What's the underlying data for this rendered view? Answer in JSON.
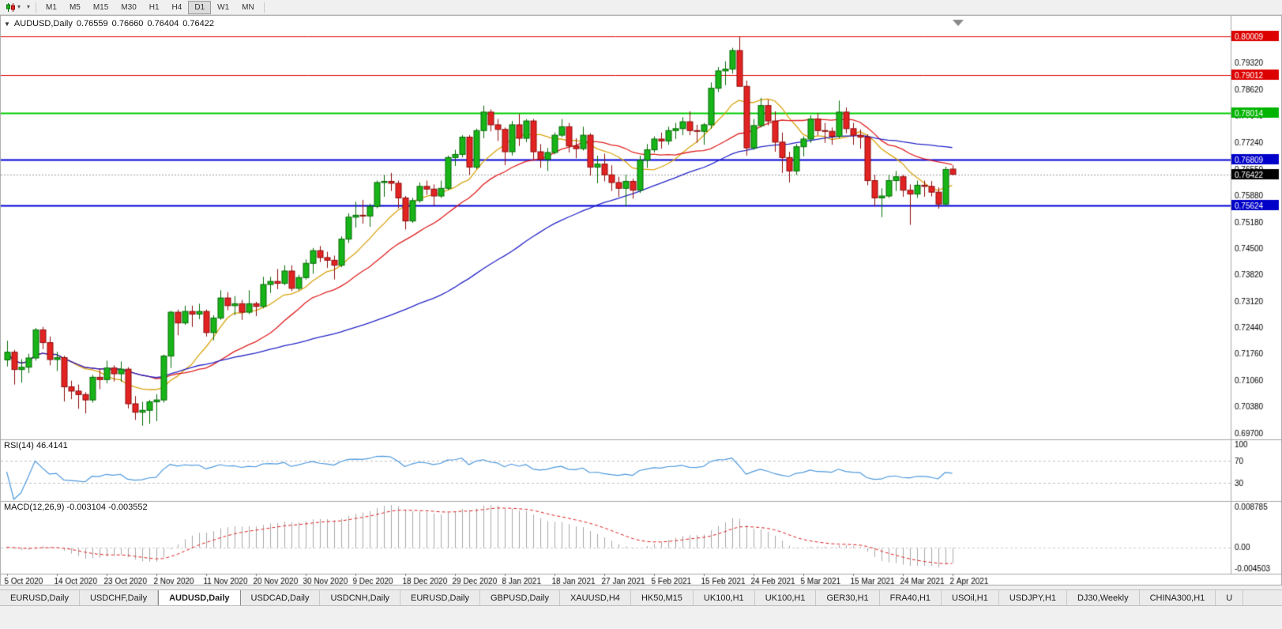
{
  "toolbar": {
    "caret": "▾",
    "timeframes": [
      "M1",
      "M5",
      "M15",
      "M30",
      "H1",
      "H4",
      "D1",
      "W1",
      "MN"
    ],
    "active_timeframe": "D1"
  },
  "chart": {
    "header": {
      "caret": "▼",
      "symbol": "AUDUSD,Daily",
      "open": "0.76559",
      "high": "0.76660",
      "low": "0.76404",
      "close": "0.76422"
    }
  },
  "rsi": {
    "label": "RSI(14) 46.4141",
    "axis_labels": [
      "100",
      "70",
      "30"
    ],
    "axis_values": [
      100,
      70,
      30
    ]
  },
  "macd": {
    "label": "MACD(12,26,9) -0.003104 -0.003552",
    "axis_labels": [
      "0.008785",
      "0.00",
      "-0.004503"
    ]
  },
  "tabs": {
    "items": [
      "EURUSD,Daily",
      "USDCHF,Daily",
      "AUDUSD,Daily",
      "USDCAD,Daily",
      "USDCNH,Daily",
      "EURUSD,Daily",
      "GBPUSD,Daily",
      "XAUUSD,H4",
      "HK50,M15",
      "UK100,H1",
      "UK100,H1",
      "GER30,H1",
      "FRA40,H1",
      "USOil,H1",
      "USDJPY,H1",
      "DJ30,Weekly",
      "CHINA300,H1",
      "U"
    ],
    "active_index": 2
  },
  "chart_data": {
    "type": "candlestick",
    "symbol": "AUDUSD",
    "timeframe": "Daily",
    "title": "AUDUSD,Daily 0.76559 0.76660 0.76404 0.76422",
    "y_axis_ticks": [
      0.7932,
      0.7862,
      0.7794,
      0.7724,
      0.7655,
      0.7588,
      0.7518,
      0.745,
      0.7382,
      0.7312,
      0.7244,
      0.7176,
      0.7106,
      0.7038,
      0.697
    ],
    "x_axis_labels": [
      "5 Oct 2020",
      "14 Oct 2020",
      "23 Oct 2020",
      "2 Nov 2020",
      "11 Nov 2020",
      "20 Nov 2020",
      "30 Nov 2020",
      "9 Dec 2020",
      "18 Dec 2020",
      "29 Dec 2020",
      "8 Jan 2021",
      "18 Jan 2021",
      "27 Jan 2021",
      "5 Feb 2021",
      "15 Feb 2021",
      "24 Feb 2021",
      "5 Mar 2021",
      "15 Mar 2021",
      "24 Mar 2021",
      "2 Apr 2021"
    ],
    "x_label_step": 7,
    "horizontal_lines": [
      {
        "price": 0.80009,
        "label": "0.80009",
        "color": "#e00000",
        "badge": "#dd0000",
        "width": 1
      },
      {
        "price": 0.79012,
        "label": "0.79012",
        "color": "#e00000",
        "badge": "#dd0000",
        "width": 1
      },
      {
        "price": 0.78014,
        "label": "0.78014",
        "color": "#00cd00",
        "badge": "#00b400",
        "width": 2
      },
      {
        "price": 0.76809,
        "label": "0.76809",
        "color": "#0000d8",
        "badge": "#0000c8",
        "width": 2
      },
      {
        "price": 0.75624,
        "label": "0.75624",
        "color": "#0000d8",
        "badge": "#0000c8",
        "width": 2
      }
    ],
    "current_price": {
      "price": 0.76422,
      "label": "0.76422",
      "badge": "#000000"
    },
    "colors": {
      "candle_up": "#17b517",
      "candle_up_border": "#056b05",
      "candle_down": "#e32222",
      "candle_down_border": "#8f0d0d",
      "ma_fast": "#d9a40e",
      "ma_mid": "#e02020",
      "ma_slow": "#2525c8",
      "rsi_line": "#4f9ade",
      "rsi_level": "#c0c0c0",
      "macd_histogram": "#a8a8a8",
      "macd_signal": "#e02020",
      "bid_line": "#9a9a9a",
      "axis_text": "#000000",
      "panel_border": "#a8a8a8"
    },
    "moving_averages": [
      {
        "period": 10,
        "color_key": "ma_fast"
      },
      {
        "period": 21,
        "color_key": "ma_mid"
      },
      {
        "period": 55,
        "color_key": "ma_slow"
      }
    ],
    "rsi_settings": {
      "period": 14,
      "current": 46.4141,
      "levels": [
        70,
        30
      ],
      "range": [
        0,
        100
      ]
    },
    "macd_settings": {
      "fast": 12,
      "slow": 26,
      "signal": 9,
      "current": -0.003104,
      "current_signal": -0.003552,
      "axis_ticks": [
        0.008785,
        0,
        -0.004503
      ]
    },
    "ohlc": [
      [
        0.716,
        0.721,
        0.7143,
        0.718
      ],
      [
        0.718,
        0.7186,
        0.7096,
        0.7135
      ],
      [
        0.7135,
        0.7162,
        0.7101,
        0.7141
      ],
      [
        0.7141,
        0.7176,
        0.7126,
        0.7165
      ],
      [
        0.7165,
        0.7243,
        0.7158,
        0.7238
      ],
      [
        0.7238,
        0.7246,
        0.7188,
        0.7205
      ],
      [
        0.7205,
        0.7221,
        0.7146,
        0.7161
      ],
      [
        0.7161,
        0.7181,
        0.7131,
        0.7166
      ],
      [
        0.7166,
        0.7171,
        0.7052,
        0.709
      ],
      [
        0.709,
        0.7106,
        0.7058,
        0.7079
      ],
      [
        0.7079,
        0.7096,
        0.7033,
        0.707
      ],
      [
        0.707,
        0.7076,
        0.7021,
        0.7056
      ],
      [
        0.7056,
        0.7121,
        0.7049,
        0.7115
      ],
      [
        0.7115,
        0.7136,
        0.7084,
        0.7109
      ],
      [
        0.7109,
        0.7158,
        0.7099,
        0.7139
      ],
      [
        0.7139,
        0.7146,
        0.7104,
        0.7124
      ],
      [
        0.7124,
        0.7156,
        0.7103,
        0.7136
      ],
      [
        0.7136,
        0.7141,
        0.7034,
        0.7046
      ],
      [
        0.7046,
        0.7066,
        0.7004,
        0.7024
      ],
      [
        0.7024,
        0.7051,
        0.6989,
        0.7029
      ],
      [
        0.7029,
        0.7056,
        0.6994,
        0.7051
      ],
      [
        0.7051,
        0.7071,
        0.7001,
        0.7056
      ],
      [
        0.7056,
        0.7174,
        0.7049,
        0.717
      ],
      [
        0.717,
        0.7288,
        0.7139,
        0.7284
      ],
      [
        0.7284,
        0.7291,
        0.7224,
        0.7256
      ],
      [
        0.7256,
        0.7301,
        0.7251,
        0.7286
      ],
      [
        0.7286,
        0.7301,
        0.7246,
        0.7279
      ],
      [
        0.7279,
        0.7306,
        0.7266,
        0.7286
      ],
      [
        0.7286,
        0.7291,
        0.7221,
        0.7231
      ],
      [
        0.7231,
        0.7276,
        0.7211,
        0.7269
      ],
      [
        0.7269,
        0.7341,
        0.7264,
        0.7321
      ],
      [
        0.7321,
        0.7336,
        0.7289,
        0.7301
      ],
      [
        0.7301,
        0.7326,
        0.7276,
        0.7306
      ],
      [
        0.7306,
        0.7316,
        0.7264,
        0.7284
      ],
      [
        0.7284,
        0.7341,
        0.7279,
        0.7306
      ],
      [
        0.7306,
        0.7311,
        0.7274,
        0.7299
      ],
      [
        0.7299,
        0.7376,
        0.7294,
        0.7356
      ],
      [
        0.7356,
        0.7376,
        0.7334,
        0.7364
      ],
      [
        0.7364,
        0.7396,
        0.7344,
        0.7359
      ],
      [
        0.7359,
        0.7406,
        0.7354,
        0.7391
      ],
      [
        0.7391,
        0.7406,
        0.7339,
        0.7346
      ],
      [
        0.7346,
        0.7381,
        0.7341,
        0.7374
      ],
      [
        0.7374,
        0.7421,
        0.7369,
        0.7411
      ],
      [
        0.7411,
        0.7451,
        0.7384,
        0.7444
      ],
      [
        0.7444,
        0.7456,
        0.7414,
        0.7426
      ],
      [
        0.7426,
        0.7441,
        0.7399,
        0.7419
      ],
      [
        0.7419,
        0.7431,
        0.7369,
        0.7406
      ],
      [
        0.7406,
        0.7481,
        0.7401,
        0.7474
      ],
      [
        0.7474,
        0.7541,
        0.7464,
        0.7531
      ],
      [
        0.7531,
        0.7571,
        0.7504,
        0.7536
      ],
      [
        0.7536,
        0.7576,
        0.7514,
        0.7534
      ],
      [
        0.7534,
        0.7566,
        0.7506,
        0.7559
      ],
      [
        0.7559,
        0.7626,
        0.7554,
        0.7621
      ],
      [
        0.7621,
        0.7641,
        0.7584,
        0.7624
      ],
      [
        0.7624,
        0.7646,
        0.7599,
        0.7619
      ],
      [
        0.7619,
        0.7626,
        0.7554,
        0.7581
      ],
      [
        0.7581,
        0.7586,
        0.7499,
        0.7521
      ],
      [
        0.7521,
        0.7581,
        0.7516,
        0.7574
      ],
      [
        0.7574,
        0.7621,
        0.7569,
        0.7611
      ],
      [
        0.7611,
        0.7626,
        0.7589,
        0.7604
      ],
      [
        0.7604,
        0.7616,
        0.7561,
        0.7586
      ],
      [
        0.7586,
        0.7626,
        0.7581,
        0.7606
      ],
      [
        0.7606,
        0.7691,
        0.7601,
        0.7686
      ],
      [
        0.7686,
        0.7706,
        0.7664,
        0.7694
      ],
      [
        0.7694,
        0.7744,
        0.7686,
        0.7739
      ],
      [
        0.7739,
        0.7744,
        0.7641,
        0.7661
      ],
      [
        0.7661,
        0.7761,
        0.7656,
        0.7756
      ],
      [
        0.7756,
        0.7821,
        0.7736,
        0.7804
      ],
      [
        0.7804,
        0.7811,
        0.7754,
        0.7771
      ],
      [
        0.7771,
        0.7786,
        0.7729,
        0.7759
      ],
      [
        0.7759,
        0.7764,
        0.7666,
        0.7701
      ],
      [
        0.7701,
        0.7781,
        0.7691,
        0.7771
      ],
      [
        0.7771,
        0.7799,
        0.7716,
        0.7736
      ],
      [
        0.7736,
        0.7786,
        0.7726,
        0.7781
      ],
      [
        0.7781,
        0.7786,
        0.7679,
        0.7701
      ],
      [
        0.7701,
        0.7721,
        0.7659,
        0.7681
      ],
      [
        0.7681,
        0.7711,
        0.7651,
        0.7699
      ],
      [
        0.7699,
        0.7751,
        0.7694,
        0.7744
      ],
      [
        0.7744,
        0.7786,
        0.7739,
        0.7766
      ],
      [
        0.7766,
        0.7776,
        0.7699,
        0.7716
      ],
      [
        0.7716,
        0.7736,
        0.7684,
        0.7709
      ],
      [
        0.7709,
        0.7766,
        0.7704,
        0.7744
      ],
      [
        0.7744,
        0.7749,
        0.7639,
        0.7661
      ],
      [
        0.7661,
        0.7691,
        0.7619,
        0.7669
      ],
      [
        0.7669,
        0.7696,
        0.7624,
        0.7641
      ],
      [
        0.7641,
        0.7666,
        0.7599,
        0.7621
      ],
      [
        0.7621,
        0.7636,
        0.7584,
        0.7606
      ],
      [
        0.7606,
        0.7641,
        0.7559,
        0.7624
      ],
      [
        0.7624,
        0.7631,
        0.7579,
        0.7601
      ],
      [
        0.7601,
        0.7691,
        0.7594,
        0.7679
      ],
      [
        0.7679,
        0.7721,
        0.7659,
        0.7706
      ],
      [
        0.7706,
        0.7741,
        0.7699,
        0.7734
      ],
      [
        0.7734,
        0.7751,
        0.7709,
        0.7729
      ],
      [
        0.7729,
        0.7766,
        0.7719,
        0.7756
      ],
      [
        0.7756,
        0.7776,
        0.7734,
        0.7761
      ],
      [
        0.7761,
        0.7791,
        0.7744,
        0.7779
      ],
      [
        0.7779,
        0.7806,
        0.7744,
        0.7756
      ],
      [
        0.7756,
        0.7771,
        0.7724,
        0.7754
      ],
      [
        0.7754,
        0.7776,
        0.7719,
        0.7771
      ],
      [
        0.7771,
        0.7881,
        0.7761,
        0.7866
      ],
      [
        0.7866,
        0.7921,
        0.7856,
        0.7911
      ],
      [
        0.7911,
        0.7936,
        0.7874,
        0.7916
      ],
      [
        0.7916,
        0.7971,
        0.7904,
        0.7964
      ],
      [
        0.7964,
        0.8001,
        0.7944,
        0.7871
      ],
      [
        0.7871,
        0.7886,
        0.7691,
        0.7711
      ],
      [
        0.7711,
        0.7786,
        0.7706,
        0.7769
      ],
      [
        0.7769,
        0.7841,
        0.7764,
        0.7821
      ],
      [
        0.7821,
        0.7836,
        0.7769,
        0.7781
      ],
      [
        0.7781,
        0.7806,
        0.7701,
        0.7726
      ],
      [
        0.7726,
        0.7751,
        0.7646,
        0.7686
      ],
      [
        0.7686,
        0.7701,
        0.7621,
        0.7651
      ],
      [
        0.7651,
        0.7721,
        0.7641,
        0.7714
      ],
      [
        0.7714,
        0.7741,
        0.7689,
        0.7734
      ],
      [
        0.7734,
        0.7796,
        0.7724,
        0.7786
      ],
      [
        0.7786,
        0.7801,
        0.7744,
        0.7756
      ],
      [
        0.7756,
        0.7776,
        0.7724,
        0.7754
      ],
      [
        0.7754,
        0.7764,
        0.7719,
        0.7741
      ],
      [
        0.7741,
        0.7834,
        0.7736,
        0.7804
      ],
      [
        0.7804,
        0.7816,
        0.7749,
        0.7761
      ],
      [
        0.7761,
        0.7776,
        0.7719,
        0.7744
      ],
      [
        0.7744,
        0.7759,
        0.7709,
        0.7739
      ],
      [
        0.7739,
        0.7746,
        0.7614,
        0.7626
      ],
      [
        0.7626,
        0.7641,
        0.7559,
        0.7581
      ],
      [
        0.7581,
        0.7606,
        0.7531,
        0.7586
      ],
      [
        0.7586,
        0.7641,
        0.7581,
        0.7626
      ],
      [
        0.7626,
        0.7651,
        0.7599,
        0.7636
      ],
      [
        0.7636,
        0.7641,
        0.7584,
        0.7601
      ],
      [
        0.7601,
        0.7616,
        0.7511,
        0.7591
      ],
      [
        0.7591,
        0.7626,
        0.7581,
        0.7614
      ],
      [
        0.7614,
        0.7626,
        0.7584,
        0.7611
      ],
      [
        0.7611,
        0.7625,
        0.7585,
        0.7596
      ],
      [
        0.7596,
        0.7608,
        0.7553,
        0.7565
      ],
      [
        0.7565,
        0.7662,
        0.756,
        0.7655
      ],
      [
        0.76559,
        0.7666,
        0.76404,
        0.76422
      ]
    ]
  }
}
